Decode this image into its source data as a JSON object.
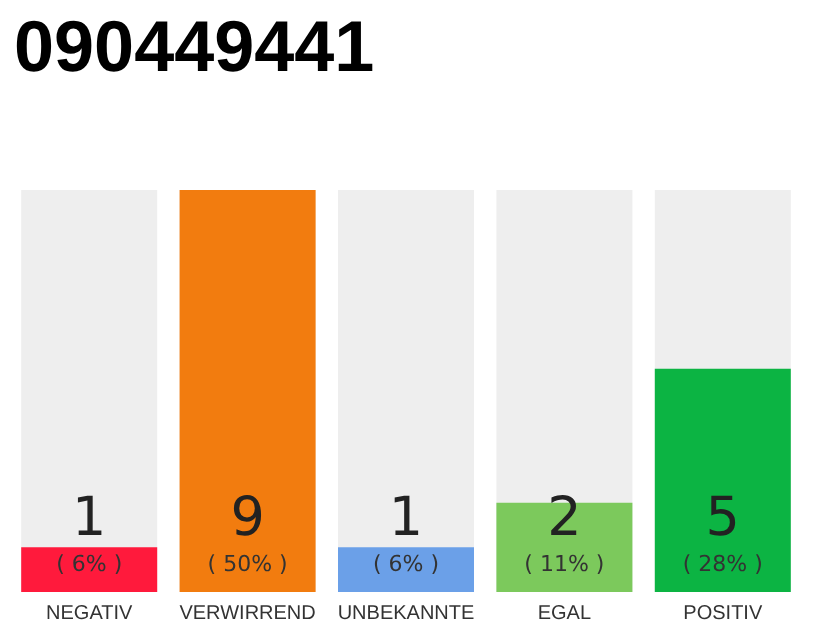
{
  "chart_data": {
    "type": "bar",
    "title": "090449441",
    "categories": [
      "NEGATIV",
      "VERWIRREND",
      "UNBEKANNTE",
      "EGAL",
      "POSITIV"
    ],
    "values": [
      1,
      9,
      1,
      2,
      5
    ],
    "colors": [
      "#ff1a3c",
      "#f27c0f",
      "#6ba0e8",
      "#7cc95c",
      "#0cb443"
    ],
    "value_labels": [
      "1\n( 6% )",
      "9\n( 50% )",
      "1\n( 6% )",
      "2\n( 11% )",
      "5\n( 28% )"
    ]
  }
}
